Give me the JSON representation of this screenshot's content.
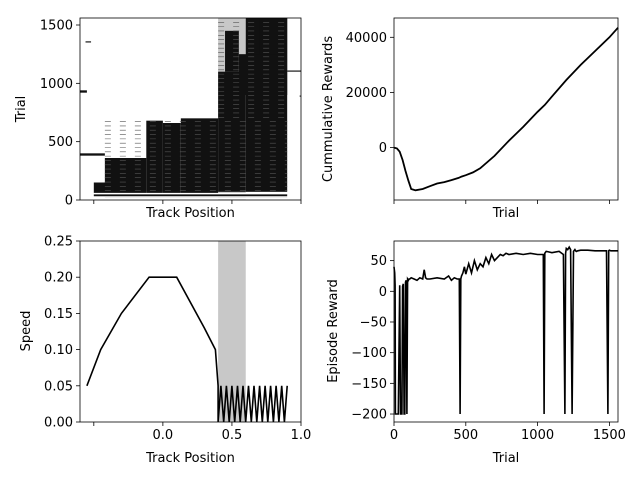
{
  "chart_data": [
    {
      "type": "heatmap",
      "xlabel": "Track Position",
      "ylabel": "Trial",
      "yticks": [
        "0",
        "500",
        "1000",
        "1500"
      ],
      "ylim": [
        0,
        1560
      ],
      "xlim": [
        -0.6,
        1.0
      ],
      "x_ticklabels_shown": false,
      "shaded_region": [
        0.4,
        0.6
      ],
      "blocks": [
        {
          "x": [
            -0.5,
            -0.4
          ],
          "y": [
            30,
            120
          ]
        },
        {
          "x": [
            -0.5,
            -0.2
          ],
          "y": [
            120,
            150
          ]
        },
        {
          "x": [
            -0.42,
            0.9
          ],
          "y": [
            20,
            60
          ]
        },
        {
          "x": [
            -0.42,
            -0.12
          ],
          "y": [
            60,
            360
          ]
        },
        {
          "x": [
            -0.12,
            0.0
          ],
          "y": [
            60,
            680
          ]
        },
        {
          "x": [
            0.0,
            0.13
          ],
          "y": [
            60,
            660
          ]
        },
        {
          "x": [
            0.13,
            0.4
          ],
          "y": [
            60,
            700
          ]
        },
        {
          "x": [
            0.4,
            0.6
          ],
          "y": [
            70,
            1100
          ]
        },
        {
          "x": [
            0.6,
            0.9
          ],
          "y": [
            70,
            1560
          ]
        },
        {
          "x": [
            0.55,
            0.9
          ],
          "y": [
            900,
            1250
          ]
        },
        {
          "x": [
            0.45,
            0.55
          ],
          "y": [
            1100,
            1450
          ]
        },
        {
          "x": [
            0.7,
            0.9
          ],
          "y": [
            1250,
            1560
          ]
        },
        {
          "x": [
            -0.6,
            -0.55
          ],
          "y": [
            920,
            940
          ]
        },
        {
          "x": [
            -0.6,
            -0.42
          ],
          "y": [
            380,
            400
          ]
        },
        {
          "x": [
            -0.56,
            -0.52
          ],
          "y": [
            1350,
            1360
          ]
        },
        {
          "x": [
            0.9,
            1.0
          ],
          "y": [
            1100,
            1110
          ]
        },
        {
          "x": [
            0.99,
            1.0
          ],
          "y": [
            890,
            895
          ]
        }
      ]
    },
    {
      "type": "line",
      "xlabel": "Trial",
      "ylabel": "Cummulative Rewards",
      "yticks": [
        "0",
        "20000",
        "40000"
      ],
      "ylim": [
        -19000,
        47000
      ],
      "xlim": [
        0,
        1560
      ],
      "x_ticklabels_shown": false,
      "x": [
        0,
        20,
        40,
        60,
        80,
        100,
        120,
        150,
        200,
        250,
        300,
        350,
        400,
        450,
        470,
        500,
        550,
        600,
        700,
        800,
        900,
        1000,
        1050,
        1100,
        1200,
        1300,
        1400,
        1500,
        1560
      ],
      "y": [
        0,
        -300,
        -1500,
        -4500,
        -8500,
        -12000,
        -15000,
        -15500,
        -15000,
        -14000,
        -13000,
        -12500,
        -11800,
        -11000,
        -10500,
        -10000,
        -9000,
        -7500,
        -3000,
        2500,
        7500,
        13000,
        15500,
        18500,
        24500,
        30000,
        35000,
        40000,
        43500
      ]
    },
    {
      "type": "line",
      "xlabel": "Track Position",
      "ylabel": "Speed",
      "xticks": [
        "0.0",
        "0.5",
        "1.0"
      ],
      "yticks": [
        "0.00",
        "0.05",
        "0.10",
        "0.15",
        "0.20",
        "0.25"
      ],
      "xlim": [
        -0.6,
        1.0
      ],
      "ylim": [
        0.0,
        0.25
      ],
      "shaded_region": [
        0.4,
        0.6
      ],
      "x": [
        -0.55,
        -0.45,
        -0.3,
        -0.1,
        0.1,
        0.3,
        0.38,
        0.4,
        0.4,
        0.42,
        0.44,
        0.46,
        0.48,
        0.5,
        0.52,
        0.54,
        0.56,
        0.58,
        0.6,
        0.62,
        0.64,
        0.66,
        0.68,
        0.7,
        0.72,
        0.74,
        0.76,
        0.78,
        0.8,
        0.82,
        0.84,
        0.86,
        0.88,
        0.9
      ],
      "y": [
        0.05,
        0.1,
        0.15,
        0.2,
        0.2,
        0.13,
        0.1,
        0.05,
        0.0,
        0.05,
        0.0,
        0.05,
        0.0,
        0.05,
        0.0,
        0.05,
        0.0,
        0.05,
        0.0,
        0.05,
        0.0,
        0.05,
        0.0,
        0.05,
        0.0,
        0.05,
        0.0,
        0.05,
        0.0,
        0.05,
        0.0,
        0.05,
        0.0,
        0.05
      ]
    },
    {
      "type": "line",
      "xlabel": "Trial",
      "ylabel": "Episode Reward",
      "xticks": [
        "0",
        "500",
        "1000",
        "1500"
      ],
      "yticks": [
        "−200",
        "−150",
        "−100",
        "−50",
        "0",
        "50"
      ],
      "xlim": [
        0,
        1560
      ],
      "ylim": [
        -213,
        82
      ],
      "x": [
        0,
        5,
        8,
        10,
        15,
        20,
        25,
        30,
        40,
        45,
        50,
        55,
        60,
        65,
        70,
        75,
        80,
        85,
        90,
        95,
        100,
        105,
        110,
        120,
        140,
        160,
        180,
        200,
        210,
        220,
        230,
        250,
        300,
        350,
        380,
        400,
        420,
        440,
        455,
        460,
        465,
        470,
        480,
        490,
        500,
        520,
        540,
        560,
        580,
        600,
        620,
        640,
        660,
        680,
        700,
        720,
        740,
        760,
        780,
        800,
        850,
        900,
        950,
        1000,
        1030,
        1040,
        1045,
        1050,
        1060,
        1080,
        1100,
        1150,
        1180,
        1190,
        1195,
        1200,
        1210,
        1220,
        1230,
        1240,
        1250,
        1260,
        1265,
        1270,
        1280,
        1300,
        1350,
        1400,
        1450,
        1480,
        1490,
        1495,
        1500,
        1510,
        1530,
        1560
      ],
      "y": [
        40,
        30,
        10,
        -200,
        -200,
        -200,
        -200,
        -200,
        10,
        -200,
        -200,
        -200,
        8,
        12,
        -200,
        -200,
        15,
        18,
        -200,
        20,
        18,
        20,
        20,
        22,
        20,
        18,
        22,
        20,
        35,
        22,
        20,
        20,
        22,
        20,
        25,
        18,
        22,
        20,
        20,
        -200,
        20,
        25,
        30,
        40,
        28,
        45,
        30,
        50,
        35,
        45,
        40,
        55,
        45,
        60,
        50,
        55,
        60,
        58,
        62,
        60,
        62,
        60,
        62,
        60,
        60,
        60,
        -200,
        62,
        65,
        64,
        63,
        65,
        60,
        -200,
        62,
        70,
        68,
        72,
        68,
        -200,
        65,
        68,
        66,
        65,
        66,
        67,
        67,
        66,
        66,
        66,
        -200,
        66,
        67,
        66,
        66,
        66
      ]
    }
  ]
}
